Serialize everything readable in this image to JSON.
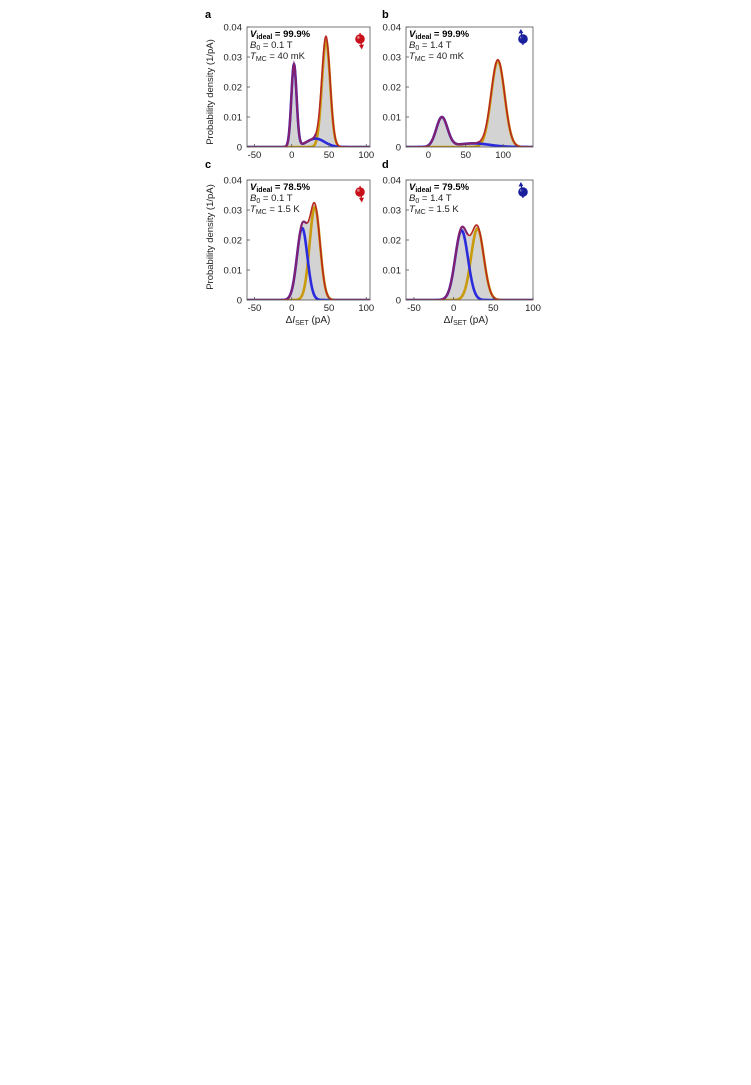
{
  "figure": {
    "ylabel": "Probability density (1/pA)",
    "xlabel_delta": "Δ",
    "xlabel_var": "I",
    "xlabel_sub": "SET",
    "xlabel_unit": " (pA)"
  },
  "chart_data": [
    {
      "panel": "a",
      "type": "area",
      "annotation": {
        "visibility_var": "V",
        "visibility_sub": "ideal",
        "visibility_value": " = 99.9%",
        "field_var": "B",
        "field_sub": "0",
        "field_value": " = 0.1 T",
        "temp_var": "T",
        "temp_sub": "MC",
        "temp_value": " = 40 mK"
      },
      "spin_icon": "spin-down",
      "spin_color": "#c8101a",
      "xlim": [
        -60,
        105
      ],
      "ylim": [
        0,
        0.04
      ],
      "xticks": [
        -50,
        0,
        50,
        100
      ],
      "xticklabels": [
        "-50",
        "0",
        "50",
        "100"
      ],
      "yticks": [
        0,
        0.01,
        0.02,
        0.03,
        0.04
      ],
      "yticklabels": [
        "0",
        "0.01",
        "0.02",
        "0.03",
        "0.04"
      ],
      "components": [
        {
          "series": "blue",
          "peaks": [
            {
              "mu": 3,
              "sigma": 3.5,
              "amp": 0.0275
            },
            {
              "mu": 32,
              "sigma": 12,
              "amp": 0.0028
            }
          ]
        },
        {
          "series": "gold",
          "peaks": [
            {
              "mu": 46,
              "sigma": 5.5,
              "amp": 0.0355
            }
          ]
        }
      ]
    },
    {
      "panel": "b",
      "type": "area",
      "annotation": {
        "visibility_var": "V",
        "visibility_sub": "ideal",
        "visibility_value": " = 99.9%",
        "field_var": "B",
        "field_sub": "0",
        "field_value": " = 1.4 T",
        "temp_var": "T",
        "temp_sub": "MC",
        "temp_value": " = 40 mK"
      },
      "spin_icon": "spin-up",
      "spin_color": "#1a1f9e",
      "xlim": [
        -30,
        140
      ],
      "ylim": [
        0,
        0.04
      ],
      "xticks": [
        0,
        50,
        100
      ],
      "xticklabels": [
        "0",
        "50",
        "100"
      ],
      "yticks": [
        0,
        0.01,
        0.02,
        0.03,
        0.04
      ],
      "yticklabels": [
        "0",
        "0.01",
        "0.02",
        "0.03",
        "0.04"
      ],
      "components": [
        {
          "series": "blue",
          "peaks": [
            {
              "mu": 18,
              "sigma": 7.5,
              "amp": 0.0098
            },
            {
              "mu": 60,
              "sigma": 22,
              "amp": 0.0012
            }
          ]
        },
        {
          "series": "gold",
          "peaks": [
            {
              "mu": 93,
              "sigma": 9,
              "amp": 0.0287
            }
          ]
        }
      ]
    },
    {
      "panel": "c",
      "type": "area",
      "annotation": {
        "visibility_var": "V",
        "visibility_sub": "ideal",
        "visibility_value": " = 78.5%",
        "field_var": "B",
        "field_sub": "0",
        "field_value": " = 0.1 T",
        "temp_var": "T",
        "temp_sub": "MC",
        "temp_value": " = 1.5 K"
      },
      "spin_icon": "spin-down",
      "spin_color": "#c8101a",
      "xlim": [
        -60,
        105
      ],
      "ylim": [
        0,
        0.04
      ],
      "xticks": [
        -50,
        0,
        50,
        100
      ],
      "xticklabels": [
        "-50",
        "0",
        "50",
        "100"
      ],
      "yticks": [
        0,
        0.01,
        0.02,
        0.03,
        0.04
      ],
      "yticklabels": [
        "0",
        "0.01",
        "0.02",
        "0.03",
        "0.04"
      ],
      "components": [
        {
          "series": "blue",
          "peaks": [
            {
              "mu": 14,
              "sigma": 7,
              "amp": 0.024
            }
          ]
        },
        {
          "series": "gold",
          "peaks": [
            {
              "mu": 31,
              "sigma": 7,
              "amp": 0.031
            }
          ]
        }
      ]
    },
    {
      "panel": "d",
      "type": "area",
      "annotation": {
        "visibility_var": "V",
        "visibility_sub": "ideal",
        "visibility_value": " = 79.5%",
        "field_var": "B",
        "field_sub": "0",
        "field_value": " = 1.4 T",
        "temp_var": "T",
        "temp_sub": "MC",
        "temp_value": " = 1.5 K"
      },
      "spin_icon": "spin-up",
      "spin_color": "#1a1f9e",
      "xlim": [
        -60,
        100
      ],
      "ylim": [
        0,
        0.04
      ],
      "xticks": [
        -50,
        0,
        50,
        100
      ],
      "xticklabels": [
        "-50",
        "0",
        "50",
        "100"
      ],
      "yticks": [
        0,
        0.01,
        0.02,
        0.03,
        0.04
      ],
      "yticklabels": [
        "0",
        "0.01",
        "0.02",
        "0.03",
        "0.04"
      ],
      "components": [
        {
          "series": "blue",
          "peaks": [
            {
              "mu": 10,
              "sigma": 8,
              "amp": 0.0232
            }
          ]
        },
        {
          "series": "gold",
          "peaks": [
            {
              "mu": 30,
              "sigma": 8,
              "amp": 0.0238
            }
          ]
        }
      ]
    }
  ],
  "colors": {
    "fill": "#d3d3d3",
    "total": "#b8291f",
    "blue": "#2b2bdd",
    "gold": "#c99a0c",
    "frame": "#555555"
  }
}
